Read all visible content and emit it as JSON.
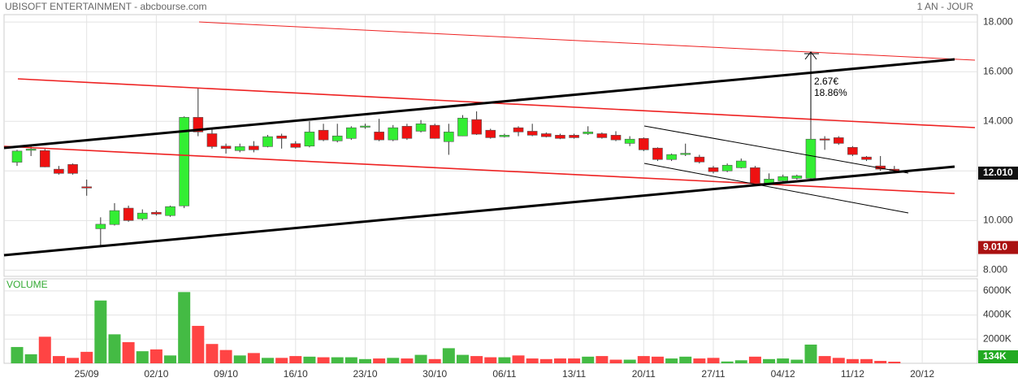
{
  "chart_data": {
    "type": "candlestick",
    "title": "UBISOFT ENTERTAINMENT - abcbourse.com",
    "period": "1 AN - JOUR",
    "categories": [
      null,
      null,
      null,
      null,
      null,
      "25/09",
      null,
      null,
      null,
      null,
      "02/10",
      null,
      null,
      null,
      null,
      "09/10",
      null,
      null,
      null,
      null,
      "16/10",
      null,
      null,
      null,
      null,
      "23/10",
      null,
      null,
      null,
      null,
      "30/10",
      null,
      null,
      null,
      null,
      "06/11",
      null,
      null,
      null,
      null,
      "13/11",
      null,
      null,
      null,
      null,
      "20/11",
      null,
      null,
      null,
      null,
      "27/11",
      null,
      null,
      null,
      null,
      "04/12",
      null,
      null,
      null,
      null,
      "11/12",
      null,
      null,
      null,
      null,
      "20/12"
    ],
    "open": [
      12.35,
      12.85,
      12.82,
      12.07,
      12.26,
      11.36,
      9.67,
      9.84,
      10.5,
      10.07,
      10.33,
      10.2,
      10.59,
      14.16,
      13.5,
      13.0,
      12.82,
      13.0,
      12.98,
      13.41,
      13.1,
      13.0,
      13.64,
      13.21,
      13.31,
      13.79,
      13.57,
      13.25,
      13.8,
      13.6,
      13.84,
      13.18,
      13.41,
      14.07,
      13.64,
      13.38,
      13.74,
      13.6,
      13.5,
      13.44,
      13.44,
      13.5,
      13.5,
      13.44,
      13.11,
      13.31,
      12.92,
      12.46,
      12.69,
      12.56,
      12.13,
      12.0,
      12.13,
      12.13,
      11.51,
      11.6,
      11.7,
      11.7,
      13.29,
      13.34,
      12.95,
      12.56,
      12.2,
      12.07,
      null,
      null
    ],
    "high": [
      12.85,
      13.05,
      12.88,
      12.2,
      12.3,
      11.65,
      10.13,
      10.7,
      10.6,
      10.45,
      10.4,
      10.6,
      14.2,
      15.35,
      13.7,
      13.1,
      13.1,
      13.2,
      13.45,
      13.5,
      13.2,
      14.0,
      13.9,
      13.9,
      13.8,
      13.9,
      14.1,
      13.85,
      13.9,
      14.05,
      13.9,
      13.9,
      14.25,
      14.4,
      13.7,
      13.5,
      13.8,
      13.9,
      13.55,
      13.5,
      13.5,
      13.8,
      13.55,
      13.6,
      13.4,
      13.35,
      12.95,
      12.7,
      13.1,
      12.65,
      12.2,
      12.3,
      12.5,
      12.2,
      11.9,
      11.85,
      11.85,
      14.1,
      13.4,
      13.4,
      13.0,
      12.6,
      12.6,
      12.2,
      null,
      null
    ],
    "low": [
      12.2,
      12.6,
      12.15,
      11.85,
      11.85,
      11.0,
      9.01,
      9.8,
      9.95,
      10.0,
      10.2,
      10.15,
      10.5,
      13.4,
      12.9,
      12.7,
      12.75,
      12.75,
      12.95,
      12.9,
      12.9,
      12.95,
      13.2,
      13.15,
      13.25,
      13.7,
      13.2,
      13.2,
      13.25,
      13.55,
      13.3,
      12.65,
      13.4,
      13.45,
      13.3,
      13.35,
      13.4,
      13.4,
      13.35,
      13.28,
      13.3,
      13.45,
      13.3,
      13.2,
      13.0,
      12.8,
      12.4,
      12.4,
      12.6,
      12.3,
      11.9,
      11.95,
      12.1,
      11.45,
      11.45,
      11.55,
      11.65,
      11.65,
      12.85,
      13.05,
      12.6,
      12.4,
      12.0,
      11.9,
      null,
      null
    ],
    "close": [
      12.8,
      12.88,
      12.16,
      11.9,
      11.9,
      11.34,
      9.85,
      10.4,
      10.0,
      10.3,
      10.26,
      10.56,
      14.16,
      13.57,
      12.98,
      12.9,
      12.98,
      12.85,
      13.38,
      13.31,
      12.95,
      13.57,
      13.25,
      13.41,
      13.74,
      13.81,
      13.25,
      13.74,
      13.31,
      13.9,
      13.31,
      13.57,
      14.13,
      13.48,
      13.34,
      13.44,
      13.57,
      13.44,
      13.38,
      13.31,
      13.34,
      13.57,
      13.34,
      13.25,
      13.28,
      12.85,
      12.46,
      12.66,
      12.71,
      12.36,
      11.97,
      12.23,
      12.4,
      11.51,
      11.67,
      11.77,
      11.8,
      13.28,
      13.27,
      13.11,
      12.66,
      12.46,
      12.07,
      12.01,
      null,
      null
    ],
    "up_color": "#33ee33",
    "down_color": "#ee1111",
    "ylim": [
      7.75,
      18.3
    ],
    "yticks": [
      {
        "value": 8,
        "label": "8.000"
      },
      {
        "value": 10,
        "label": "10.000"
      },
      {
        "value": 12,
        "label": "12.000"
      },
      {
        "value": 14,
        "label": "14.000"
      },
      {
        "value": 16,
        "label": "16.000"
      },
      {
        "value": 18,
        "label": "18.000"
      }
    ],
    "grid": true,
    "last_price": {
      "value": 12.01,
      "label": "12.010"
    },
    "low_marker": {
      "value": 9.01,
      "label": "9.010"
    },
    "annotations": [
      "2.67€",
      "18.86%"
    ],
    "volume": {
      "label": "VOLUME",
      "values": [
        1350,
        750,
        2200,
        600,
        450,
        950,
        5200,
        2400,
        1750,
        1000,
        1150,
        650,
        5900,
        3100,
        1600,
        1100,
        650,
        850,
        450,
        450,
        600,
        550,
        500,
        500,
        500,
        350,
        400,
        450,
        400,
        700,
        350,
        1250,
        700,
        600,
        500,
        500,
        650,
        400,
        350,
        400,
        400,
        550,
        600,
        300,
        300,
        600,
        550,
        400,
        550,
        400,
        450,
        150,
        250,
        550,
        350,
        400,
        300,
        1550,
        600,
        450,
        350,
        350,
        200,
        134,
        null,
        null
      ],
      "up_color": "#44bb44",
      "down_color": "#ff4444",
      "ylim": [
        0,
        7000
      ],
      "yticks": [
        {
          "value": 2000,
          "label": "2000K"
        },
        {
          "value": 4000,
          "label": "4000K"
        },
        {
          "value": 6000,
          "label": "6000K"
        }
      ],
      "last": {
        "value": 134,
        "label": "134K"
      }
    }
  }
}
